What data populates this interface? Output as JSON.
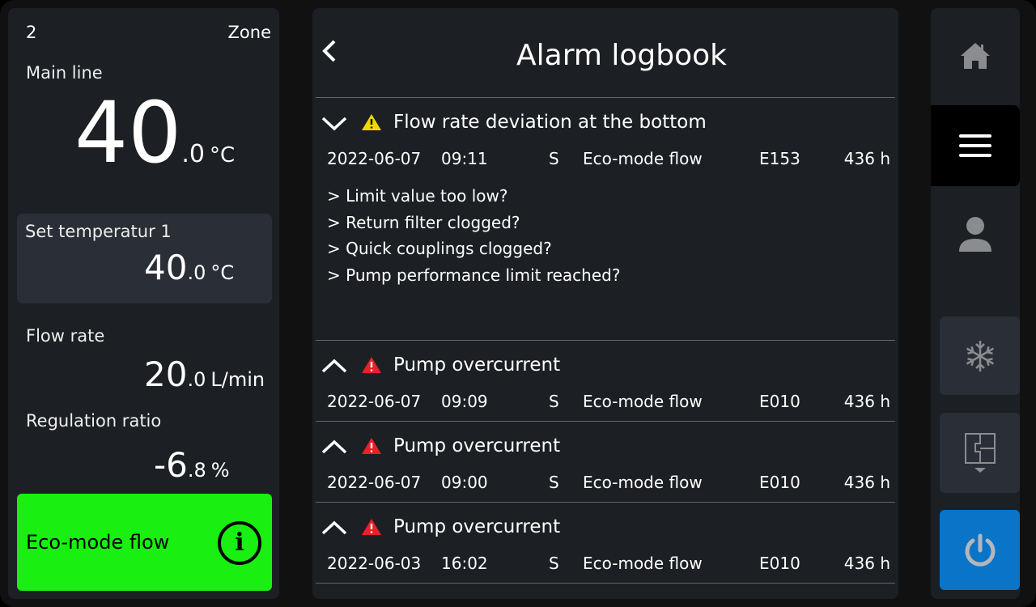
{
  "left": {
    "zone_number": "2",
    "zone_label": "Zone",
    "main_line": {
      "label": "Main line",
      "int": "40",
      "dec": ".0",
      "unit": "°C"
    },
    "set_temp": {
      "label": "Set temperatur 1",
      "int": "40",
      "dec": ".0",
      "unit": "°C"
    },
    "flow": {
      "label": "Flow rate",
      "int": "20",
      "dec": ".0",
      "unit": "L/min"
    },
    "ratio": {
      "label": "Regulation ratio",
      "int": "-6",
      "dec": ".8",
      "unit": "%"
    },
    "mode": {
      "label": "Eco-mode flow",
      "icon": "info-icon",
      "color": "#19f012"
    }
  },
  "header": {
    "title": "Alarm logbook",
    "back_icon": "chevron-left-icon"
  },
  "alarms": [
    {
      "expanded": true,
      "severity": "warning",
      "title": "Flow rate deviation at the bottom",
      "date": "2022-06-07",
      "time": "09:11",
      "type": "S",
      "mode": "Eco-mode flow",
      "code": "E153",
      "hours": "436 h",
      "hints": [
        "> Limit value too low?",
        "> Return filter clogged?",
        "> Quick couplings clogged?",
        "> Pump performance limit reached?"
      ]
    },
    {
      "expanded": false,
      "severity": "error",
      "title": "Pump overcurrent",
      "date": "2022-06-07",
      "time": "09:09",
      "type": "S",
      "mode": "Eco-mode flow",
      "code": "E010",
      "hours": "436 h"
    },
    {
      "expanded": false,
      "severity": "error",
      "title": "Pump overcurrent",
      "date": "2022-06-07",
      "time": "09:00",
      "type": "S",
      "mode": "Eco-mode flow",
      "code": "E010",
      "hours": "436 h"
    },
    {
      "expanded": false,
      "severity": "error",
      "title": "Pump overcurrent",
      "date": "2022-06-03",
      "time": "16:02",
      "type": "S",
      "mode": "Eco-mode flow",
      "code": "E010",
      "hours": "436 h"
    }
  ],
  "sidebar": {
    "tabs": [
      "home-icon",
      "menu-icon",
      "user-icon"
    ],
    "active": "menu-icon",
    "buttons": [
      "snowflake-icon",
      "floorplan-icon",
      "power-icon"
    ],
    "power_color": "#0a74c8"
  }
}
